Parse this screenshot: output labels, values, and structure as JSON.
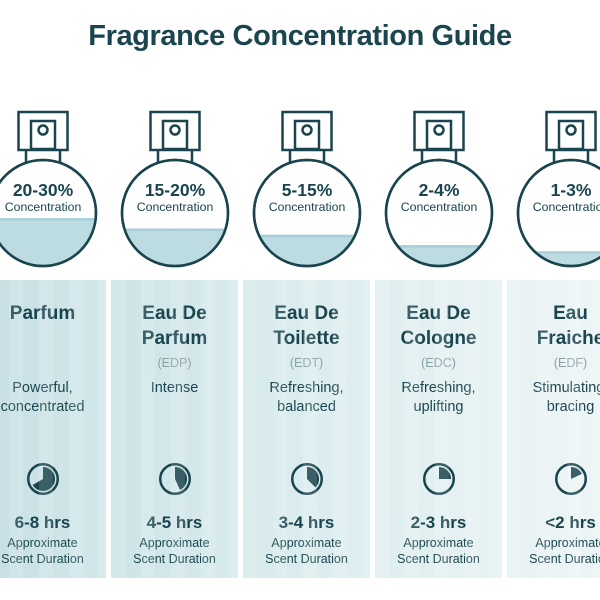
{
  "title": "Fragrance Concentration Guide",
  "colors": {
    "ink": "#1a454e",
    "muted": "#8ba0a5",
    "liquid": "#bcdce2",
    "liquid_edge": "#a8cfd8"
  },
  "columns": [
    {
      "name_line1": "Parfum",
      "name_line2": "",
      "abbrev": "",
      "concentration": "20-30%",
      "concentration_label": "Concentration",
      "fill_percent": 45,
      "desc_line1": "Powerful,",
      "desc_line2": "concentrated",
      "duration": "6-8 hrs",
      "clock_degrees": 240,
      "duration_label_line1": "Approximate",
      "duration_label_line2": "Scent Duration",
      "bg_from": "#c6dfe3",
      "bg_to": "#d2e7ea"
    },
    {
      "name_line1": "Eau De",
      "name_line2": "Parfum",
      "abbrev": "(EDP)",
      "concentration": "15-20%",
      "concentration_label": "Concentration",
      "fill_percent": 35,
      "desc_line1": "Intense",
      "desc_line2": "",
      "duration": "4-5 hrs",
      "clock_degrees": 155,
      "duration_label_line1": "Approximate",
      "duration_label_line2": "Scent Duration",
      "bg_from": "#cde4e7",
      "bg_to": "#d8ebed"
    },
    {
      "name_line1": "Eau De",
      "name_line2": "Toilette",
      "abbrev": "(EDT)",
      "concentration": "5-15%",
      "concentration_label": "Concentration",
      "fill_percent": 29,
      "desc_line1": "Refreshing,",
      "desc_line2": "balanced",
      "duration": "3-4 hrs",
      "clock_degrees": 135,
      "duration_label_line1": "Approximate",
      "duration_label_line2": "Scent Duration",
      "bg_from": "#d7eaec",
      "bg_to": "#e0eff1"
    },
    {
      "name_line1": "Eau De",
      "name_line2": "Cologne",
      "abbrev": "(EDC)",
      "concentration": "2-4%",
      "concentration_label": "Concentration",
      "fill_percent": 19,
      "desc_line1": "Refreshing,",
      "desc_line2": "uplifting",
      "duration": "2-3 hrs",
      "clock_degrees": 90,
      "duration_label_line1": "Approximate",
      "duration_label_line2": "Scent Duration",
      "bg_from": "#dfeef0",
      "bg_to": "#e7f2f3"
    },
    {
      "name_line1": "Eau",
      "name_line2": "Fraiche",
      "abbrev": "(EDF)",
      "concentration": "1-3%",
      "concentration_label": "Concentration",
      "fill_percent": 13,
      "desc_line1": "Stimulating,",
      "desc_line2": "bracing",
      "duration": "<2 hrs",
      "clock_degrees": 65,
      "duration_label_line1": "Approximate",
      "duration_label_line2": "Scent Duration",
      "bg_from": "#e8f2f3",
      "bg_to": "#eff6f7"
    }
  ]
}
